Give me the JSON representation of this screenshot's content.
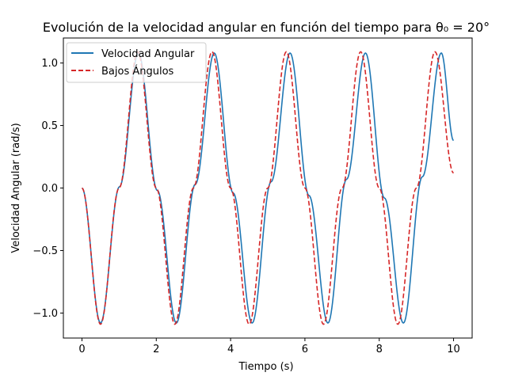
{
  "chart_data": {
    "type": "line",
    "title": "Evolución de la velocidad angular en función del tiempo para θ₀ = 20°",
    "xlabel": "Tiempo (s)",
    "ylabel": "Velocidad Angular (rad/s)",
    "xlim": [
      -0.5,
      10.5
    ],
    "ylim": [
      -1.2,
      1.2
    ],
    "xticks": [
      0,
      2,
      4,
      6,
      8,
      10
    ],
    "xtick_labels": [
      "0",
      "2",
      "4",
      "6",
      "8",
      "10"
    ],
    "yticks": [
      -1.0,
      -0.5,
      0.0,
      0.5,
      1.0
    ],
    "ytick_labels": [
      "−1.0",
      "−0.5",
      "0.0",
      "0.5",
      "1.0"
    ],
    "grid": false,
    "legend_position": "top-left",
    "series": [
      {
        "name": "Velocidad Angular",
        "color": "#1f77b4",
        "style": "solid",
        "x": [
          0,
          0.5,
          1.01,
          1.52,
          2.03,
          2.54,
          3.05,
          3.56,
          4.07,
          4.58,
          5.09,
          5.6,
          6.11,
          6.62,
          7.12,
          7.63,
          8.14,
          8.65,
          9.16,
          9.67,
          10.0
        ],
        "y": [
          0,
          -1.08,
          0.01,
          1.08,
          -0.02,
          -1.08,
          0.03,
          1.08,
          -0.04,
          -1.08,
          0.05,
          1.08,
          -0.06,
          -1.08,
          0.07,
          1.08,
          -0.08,
          -1.08,
          0.09,
          1.08,
          0.38
        ]
      },
      {
        "name": "Bajos Ángulos",
        "color": "#d62728",
        "style": "dashed",
        "x": [
          0,
          0.5,
          1.0,
          1.5,
          2.0,
          2.5,
          3.0,
          3.5,
          4.0,
          4.5,
          5.0,
          5.5,
          6.0,
          6.5,
          7.0,
          7.5,
          8.0,
          8.5,
          9.0,
          9.5,
          10.0
        ],
        "y": [
          0,
          -1.09,
          0,
          1.09,
          0,
          -1.09,
          0,
          1.09,
          0,
          -1.09,
          0,
          1.09,
          0,
          -1.09,
          0,
          1.09,
          0,
          -1.09,
          0,
          1.09,
          0.12
        ]
      }
    ]
  }
}
